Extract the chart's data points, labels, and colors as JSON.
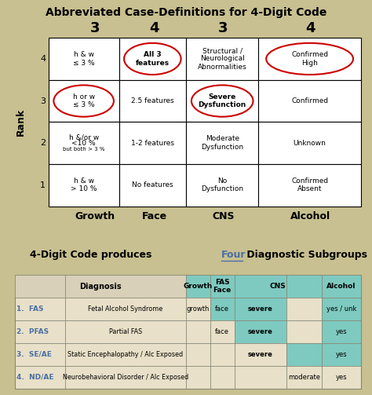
{
  "title_top": "Abbreviated Case-Definitions for 4-Digit Code",
  "title_bottom": "4-Digit Code produces ",
  "title_bottom_highlight": "Four",
  "title_bottom_rest": " Diagnostic Subgroups",
  "bg_color": "#c8c090",
  "col_headers": [
    "3",
    "4",
    "3",
    "4"
  ],
  "col_labels": [
    "Growth",
    "Face",
    "CNS",
    "Alcohol"
  ],
  "row_ranks": [
    "4",
    "3",
    "2",
    "1"
  ],
  "grid_data": [
    [
      "h & w\n≤ 3 %",
      "All 3\nfeatures",
      "Structural /\nNeurological\nAbnormalities",
      "Confirmed\nHigh"
    ],
    [
      "h or w\n≤ 3 %",
      "2.5 features",
      "Severe\nDysfunction",
      "Confirmed"
    ],
    [
      "h &/or w\n<10 %\nbut both > 3 %",
      "1-2 features",
      "Moderate\nDysfunction",
      "Unknown"
    ],
    [
      "h & w\n> 10 %",
      "No features",
      "No\nDysfunction",
      "Confirmed\nAbsent"
    ]
  ],
  "circled_cells": [
    [
      0,
      1
    ],
    [
      1,
      0
    ],
    [
      1,
      2
    ],
    [
      0,
      3
    ]
  ],
  "teal_color": "#7ecac0",
  "diag_label_color": "#4a6fa5",
  "red_circle_color": "#cc0000",
  "rank_label": "Rank",
  "diag_rows": [
    [
      "1.  FAS",
      "Fetal Alcohol Syndrome",
      "growth",
      "face",
      "severe",
      "",
      "yes / unk"
    ],
    [
      "2.  PFAS",
      "Partial FAS",
      "",
      "face",
      "severe",
      "",
      "yes"
    ],
    [
      "3.  SE/AE",
      "Static Encephalopathy / Alc Exposed",
      "",
      "",
      "severe",
      "",
      "yes"
    ],
    [
      "4.  ND/AE",
      "Neurobehavioral Disorder / Alc Exposed",
      "",
      "",
      "",
      "moderate",
      "yes"
    ]
  ]
}
